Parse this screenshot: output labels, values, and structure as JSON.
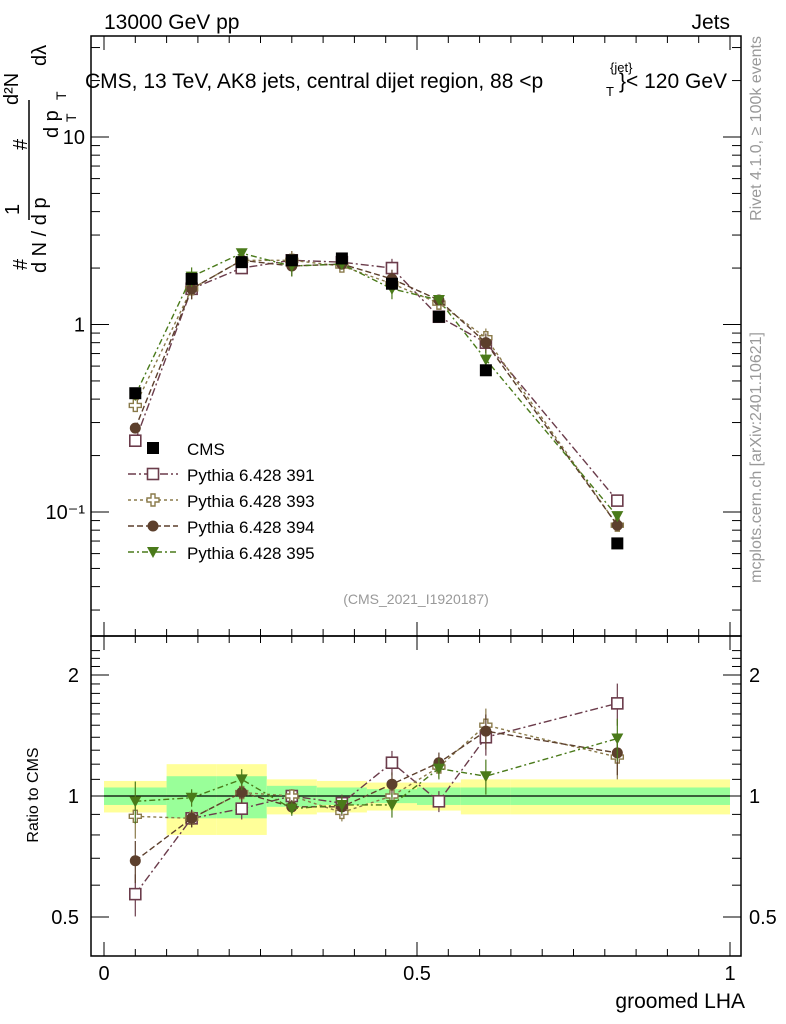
{
  "header": {
    "energy": "13000 GeV pp",
    "category": "Jets",
    "title_main": "CMS, 13 TeV, AK8 jets, central dijet region, 88 <p",
    "title_sup": "{jet}",
    "title_sub": "T",
    "title_end": "}< 120 GeV",
    "watermark": "(CMS_2021_I1920187)",
    "side_rivet": "Rivet 4.1.0, ≥ 100k events",
    "side_mcplots": "mcplots.cern.ch [arXiv:2401.10621]"
  },
  "axes": {
    "ylabel_top": "1/N dN/dp_T d²N/dp_T dλ",
    "ylabel_top_num": "1",
    "ylabel_top_den": "d N / d p",
    "ylabel_top_num2": "d²N",
    "ylabel_top_den2": "d p",
    "ylabel_top_lambda": "dλ",
    "ylabel_top_hash": "#",
    "ylabel_top_T": "T",
    "ylabel_bottom": "Ratio to CMS",
    "xlabel": "groomed LHA",
    "top_ticks": [
      "10⁻¹",
      "1",
      "10"
    ],
    "ratio_ticks": [
      "0.5",
      "1",
      "2"
    ],
    "x_ticks": [
      "0",
      "0.5",
      "1"
    ]
  },
  "chart_data": {
    "type": "line",
    "title": "CMS, 13 TeV, AK8 jets, central dijet region, 88 < pT(jet) < 120 GeV",
    "xlabel": "groomed LHA",
    "ylabel": "1/N dN/dpT d2N/dpT dlambda",
    "xlim": [
      -0.03,
      1.03
    ],
    "ylim": [
      0.02,
      40
    ],
    "ylog": true,
    "ratio_ylim": [
      0.4,
      2.3
    ],
    "bin_edges": [
      0.0,
      0.1,
      0.18,
      0.26,
      0.34,
      0.42,
      0.5,
      0.57,
      0.65,
      1.0
    ],
    "x": [
      0.05,
      0.14,
      0.22,
      0.3,
      0.38,
      0.46,
      0.535,
      0.61,
      0.82
    ],
    "reference": {
      "name": "CMS",
      "values": [
        0.43,
        1.75,
        2.15,
        2.2,
        2.25,
        1.65,
        1.1,
        0.57,
        0.068
      ],
      "band_inner": [
        0.05,
        0.12,
        0.12,
        0.06,
        0.05,
        0.04,
        0.05,
        0.05,
        0.05
      ],
      "band_outer": [
        0.09,
        0.2,
        0.2,
        0.1,
        0.09,
        0.08,
        0.08,
        0.1,
        0.1
      ]
    },
    "series": [
      {
        "name": "Pythia 6.428 391",
        "color": "#6b3c4b",
        "marker": "open-square",
        "dash": "8,3,2,3",
        "values": [
          0.24,
          1.55,
          2.0,
          2.2,
          2.15,
          2.0,
          1.1,
          0.8,
          0.115
        ],
        "ratio": [
          0.57,
          0.88,
          0.93,
          1.0,
          0.96,
          1.21,
          0.97,
          1.4,
          1.7
        ]
      },
      {
        "name": "Pythia 6.428 393",
        "color": "#8a7a4a",
        "marker": "open-cross",
        "dash": "3,3",
        "values": [
          0.37,
          1.55,
          2.2,
          2.2,
          2.05,
          1.65,
          1.3,
          0.85,
          0.085
        ],
        "ratio": [
          0.89,
          0.88,
          1.02,
          1.0,
          0.91,
          1.0,
          1.18,
          1.5,
          1.25
        ]
      },
      {
        "name": "Pythia 6.428 394",
        "color": "#5c3f2c",
        "marker": "filled-circle",
        "dash": "6,3",
        "values": [
          0.28,
          1.55,
          2.2,
          2.05,
          2.1,
          1.75,
          1.35,
          0.8,
          0.085
        ],
        "ratio": [
          0.69,
          0.88,
          1.02,
          0.94,
          0.94,
          1.07,
          1.21,
          1.45,
          1.28
        ]
      },
      {
        "name": "Pythia 6.428 395",
        "color": "#4a7a1a",
        "marker": "filled-triangle",
        "dash": "6,3,2,3",
        "values": [
          0.42,
          1.8,
          2.4,
          2.05,
          2.1,
          1.55,
          1.35,
          0.65,
          0.095
        ],
        "ratio": [
          0.97,
          0.99,
          1.1,
          0.93,
          0.95,
          0.95,
          1.17,
          1.12,
          1.39
        ]
      }
    ]
  }
}
